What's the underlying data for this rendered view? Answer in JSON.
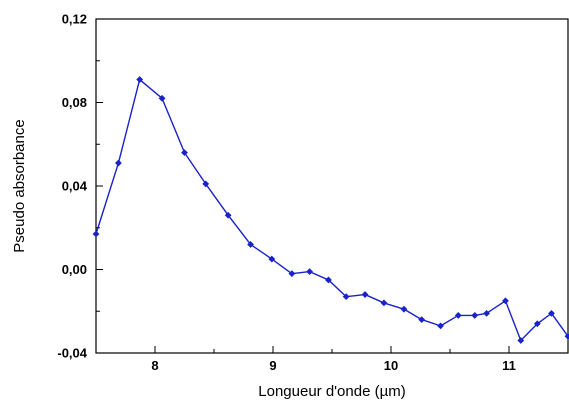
{
  "chart_data": {
    "type": "line",
    "title": "",
    "xlabel": "Longueur d'onde (µm)",
    "ylabel": "Pseudo absorbance",
    "xlim": [
      7.5,
      11.5
    ],
    "ylim": [
      -0.04,
      0.12
    ],
    "x_ticks": [
      8,
      9,
      10,
      11
    ],
    "x_tick_labels": [
      "8",
      "9",
      "10",
      "11"
    ],
    "y_ticks": [
      -0.04,
      0.0,
      0.04,
      0.08,
      0.12
    ],
    "y_tick_labels": [
      "-0,04",
      "0,00",
      "0,04",
      "0,08",
      "0,12"
    ],
    "grid": false,
    "legend": "none",
    "series_color": "#1a23c8",
    "series": [
      {
        "marker": "diamond",
        "x": [
          7.5,
          7.69,
          7.87,
          8.06,
          8.25,
          8.43,
          8.62,
          8.81,
          8.99,
          9.16,
          9.31,
          9.47,
          9.62,
          9.78,
          9.94,
          10.11,
          10.26,
          10.42,
          10.57,
          10.71,
          10.81,
          10.97,
          11.1,
          11.24,
          11.36,
          11.5
        ],
        "y": [
          0.017,
          0.051,
          0.091,
          0.082,
          0.056,
          0.041,
          0.026,
          0.012,
          0.005,
          -0.002,
          -0.001,
          -0.005,
          -0.013,
          -0.012,
          -0.016,
          -0.019,
          -0.024,
          -0.027,
          -0.022,
          -0.022,
          -0.021,
          -0.015,
          -0.034,
          -0.026,
          -0.021,
          -0.032
        ]
      }
    ]
  }
}
